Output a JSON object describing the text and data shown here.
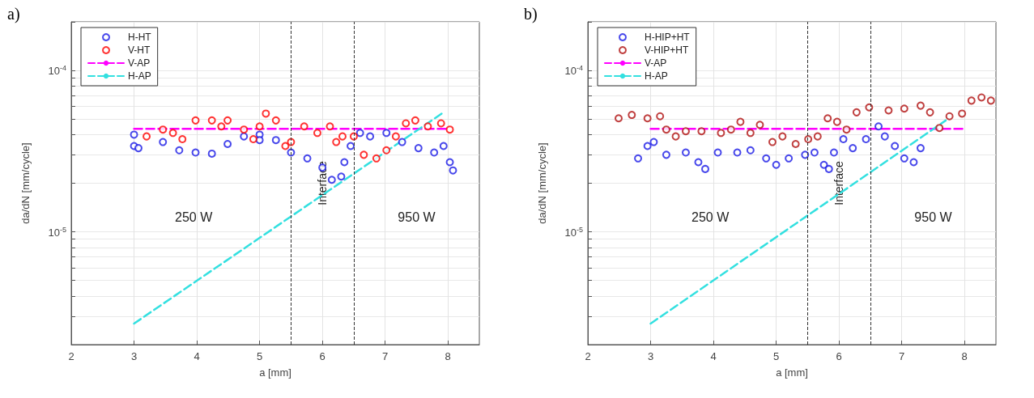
{
  "chart_data": [
    {
      "type": "scatter",
      "title": "a)",
      "xlabel": "a [mm]",
      "ylabel": "da/dN [mm/cycle]",
      "xlim": [
        2,
        8.5
      ],
      "xticks": [
        2,
        3,
        4,
        5,
        6,
        7,
        8
      ],
      "ylim": [
        2e-06,
        0.0002
      ],
      "yticks": [
        {
          "value": 2e-06,
          "label": null
        },
        {
          "value": 3e-06,
          "label": null
        },
        {
          "value": 4e-06,
          "label": null
        },
        {
          "value": 5e-06,
          "label": null
        },
        {
          "value": 6e-06,
          "label": null
        },
        {
          "value": 7e-06,
          "label": null
        },
        {
          "value": 8e-06,
          "label": null
        },
        {
          "value": 9e-06,
          "label": null
        },
        {
          "value": 1e-05,
          "label": "10$^{-5}$"
        },
        {
          "value": 2e-05,
          "label": null
        },
        {
          "value": 3e-05,
          "label": null
        },
        {
          "value": 4e-05,
          "label": null
        },
        {
          "value": 5e-05,
          "label": null
        },
        {
          "value": 6e-05,
          "label": null
        },
        {
          "value": 7e-05,
          "label": null
        },
        {
          "value": 8e-05,
          "label": null
        },
        {
          "value": 9e-05,
          "label": null
        },
        {
          "value": 0.0001,
          "label": "10$^{-4}$"
        },
        {
          "value": 0.0002,
          "label": null
        }
      ],
      "log": "y",
      "grid": true,
      "legend": "top left",
      "marker": "circle",
      "series": [
        {
          "name": "H-HT",
          "type": "scatter",
          "color": "#1a1ae6",
          "x": [
            3.0,
            3.0,
            3.07,
            3.46,
            3.72,
            3.98,
            4.24,
            4.49,
            4.75,
            5.0,
            5.0,
            5.26,
            5.5,
            5.76,
            6.0,
            6.15,
            6.3,
            6.35,
            6.45,
            6.6,
            6.76,
            7.02,
            7.27,
            7.53,
            7.78,
            7.93,
            8.03,
            8.08
          ],
          "values": [
            4e-05,
            3.4e-05,
            3.3e-05,
            3.6e-05,
            3.2e-05,
            3.1e-05,
            3.05e-05,
            3.5e-05,
            3.9e-05,
            4e-05,
            3.7e-05,
            3.7e-05,
            3.1e-05,
            2.85e-05,
            2.5e-05,
            2.1e-05,
            2.2e-05,
            2.7e-05,
            3.4e-05,
            4.1e-05,
            3.9e-05,
            4.1e-05,
            3.6e-05,
            3.3e-05,
            3.1e-05,
            3.4e-05,
            2.7e-05,
            2.4e-05
          ]
        },
        {
          "name": "V-HT",
          "type": "scatter",
          "color": "#ff0000",
          "x": [
            3.2,
            3.46,
            3.62,
            3.77,
            3.98,
            4.24,
            4.39,
            4.49,
            4.75,
            4.9,
            5.0,
            5.1,
            5.26,
            5.41,
            5.5,
            5.71,
            5.92,
            6.12,
            6.22,
            6.32,
            6.5,
            6.66,
            6.86,
            7.02,
            7.17,
            7.33,
            7.48,
            7.68,
            7.89,
            8.03
          ],
          "values": [
            3.9e-05,
            4.3e-05,
            4.1e-05,
            3.75e-05,
            4.9e-05,
            4.9e-05,
            4.5e-05,
            4.9e-05,
            4.3e-05,
            3.75e-05,
            4.5e-05,
            5.4e-05,
            4.9e-05,
            3.4e-05,
            3.6e-05,
            4.5e-05,
            4.1e-05,
            4.5e-05,
            3.6e-05,
            3.9e-05,
            3.9e-05,
            3e-05,
            2.85e-05,
            3.2e-05,
            3.9e-05,
            4.7e-05,
            4.9e-05,
            4.5e-05,
            4.7e-05,
            4.3e-05
          ]
        },
        {
          "name": "V-AP",
          "type": "line",
          "color": "#ff00ff",
          "line_style": "dashed",
          "marker": "none",
          "x": [
            3,
            8
          ],
          "values": [
            4.35e-05,
            4.35e-05
          ]
        },
        {
          "name": "H-AP",
          "type": "line",
          "color": "#33e0e0",
          "line_style": "dashed",
          "marker": "none",
          "x": [
            3,
            7.9
          ],
          "values": [
            2.7e-06,
            5.4e-05
          ]
        }
      ],
      "ref_lines": [
        {
          "axis": "x",
          "value": 5.5,
          "color": "#333333",
          "line_style": "dashed"
        },
        {
          "axis": "x",
          "value": 6.5,
          "color": "#333333",
          "line_style": "dashed"
        }
      ],
      "annotations": [
        "250 W",
        "Interface",
        "950 W"
      ]
    },
    {
      "type": "scatter",
      "title": "b)",
      "xlabel": "a [mm]",
      "ylabel": "da/dN [mm/cycle]",
      "xlim": [
        2,
        8.5
      ],
      "xticks": [
        2,
        3,
        4,
        5,
        6,
        7,
        8
      ],
      "ylim": [
        2e-06,
        0.0002
      ],
      "yticks": [
        {
          "value": 2e-06,
          "label": null
        },
        {
          "value": 3e-06,
          "label": null
        },
        {
          "value": 4e-06,
          "label": null
        },
        {
          "value": 5e-06,
          "label": null
        },
        {
          "value": 6e-06,
          "label": null
        },
        {
          "value": 7e-06,
          "label": null
        },
        {
          "value": 8e-06,
          "label": null
        },
        {
          "value": 9e-06,
          "label": null
        },
        {
          "value": 1e-05,
          "label": "10$^{-5}$"
        },
        {
          "value": 2e-05,
          "label": null
        },
        {
          "value": 3e-05,
          "label": null
        },
        {
          "value": 4e-05,
          "label": null
        },
        {
          "value": 5e-05,
          "label": null
        },
        {
          "value": 6e-05,
          "label": null
        },
        {
          "value": 7e-05,
          "label": null
        },
        {
          "value": 8e-05,
          "label": null
        },
        {
          "value": 9e-05,
          "label": null
        },
        {
          "value": 0.0001,
          "label": "10$^{-4}$"
        },
        {
          "value": 0.0002,
          "label": null
        }
      ],
      "log": "y",
      "grid": true,
      "legend": "top left",
      "marker": "circle",
      "series": [
        {
          "name": "H-HIP+HT",
          "type": "scatter",
          "color": "#1a1ae6",
          "x": [
            2.8,
            2.95,
            3.05,
            3.25,
            3.56,
            3.76,
            3.87,
            4.07,
            4.38,
            4.59,
            4.84,
            5.0,
            5.2,
            5.46,
            5.61,
            5.76,
            5.84,
            5.92,
            6.07,
            6.22,
            6.43,
            6.63,
            6.73,
            6.89,
            7.04,
            7.19,
            7.3
          ],
          "values": [
            2.85e-05,
            3.4e-05,
            3.6e-05,
            3e-05,
            3.1e-05,
            2.7e-05,
            2.45e-05,
            3.1e-05,
            3.1e-05,
            3.2e-05,
            2.85e-05,
            2.6e-05,
            2.85e-05,
            3e-05,
            3.1e-05,
            2.6e-05,
            2.45e-05,
            3.1e-05,
            3.75e-05,
            3.3e-05,
            3.75e-05,
            4.5e-05,
            3.9e-05,
            3.4e-05,
            2.85e-05,
            2.7e-05,
            3.3e-05
          ]
        },
        {
          "name": "V-HIP+HT",
          "type": "scatter",
          "color": "#b01010",
          "x": [
            2.49,
            2.7,
            2.95,
            3.15,
            3.25,
            3.4,
            3.56,
            3.81,
            4.12,
            4.28,
            4.43,
            4.59,
            4.74,
            4.94,
            5.1,
            5.31,
            5.51,
            5.66,
            5.82,
            5.97,
            6.12,
            6.28,
            6.48,
            6.79,
            7.04,
            7.3,
            7.45,
            7.6,
            7.76,
            7.96,
            8.11,
            8.27,
            8.42
          ],
          "values": [
            5.05e-05,
            5.3e-05,
            5.05e-05,
            5.2e-05,
            4.3e-05,
            3.9e-05,
            4.2e-05,
            4.2e-05,
            4.1e-05,
            4.3e-05,
            4.8e-05,
            4.1e-05,
            4.6e-05,
            3.6e-05,
            3.9e-05,
            3.5e-05,
            3.75e-05,
            3.9e-05,
            5.05e-05,
            4.8e-05,
            4.3e-05,
            5.5e-05,
            5.9e-05,
            5.65e-05,
            5.8e-05,
            6.05e-05,
            5.5e-05,
            4.4e-05,
            5.2e-05,
            5.4e-05,
            6.5e-05,
            6.8e-05,
            6.5e-05
          ]
        },
        {
          "name": "V-AP",
          "type": "line",
          "color": "#ff00ff",
          "line_style": "dashed",
          "marker": "none",
          "x": [
            3,
            8
          ],
          "values": [
            4.35e-05,
            4.35e-05
          ]
        },
        {
          "name": "H-AP",
          "type": "line",
          "color": "#33e0e0",
          "line_style": "dashed",
          "marker": "none",
          "x": [
            3,
            7.7
          ],
          "values": [
            2.7e-06,
            4.9e-05
          ]
        }
      ],
      "ref_lines": [
        {
          "axis": "x",
          "value": 5.5,
          "color": "#333333",
          "line_style": "dashed"
        },
        {
          "axis": "x",
          "value": 6.5,
          "color": "#333333",
          "line_style": "dashed"
        }
      ],
      "annotations": [
        "250 W",
        "Interface",
        "950 W"
      ]
    }
  ]
}
